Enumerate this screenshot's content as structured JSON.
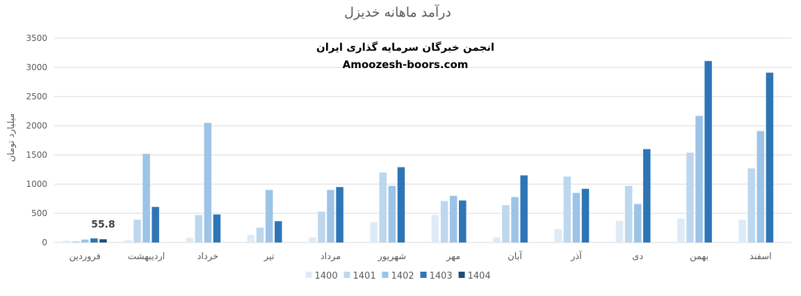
{
  "chart_data": {
    "type": "bar",
    "title": "درآمد ماهانه خدیزل",
    "ylabel": "میلیارد تومان",
    "xlabel": "",
    "ylim": [
      0,
      3500
    ],
    "yticks": [
      0,
      500,
      1000,
      1500,
      2000,
      2500,
      3000,
      3500
    ],
    "grid": true,
    "legend_position": "bottom",
    "categories": [
      "فروردین",
      "اردیبهشت",
      "خرداد",
      "تیر",
      "مرداد",
      "شهریور",
      "مهر",
      "آبان",
      "آذر",
      "دی",
      "بهمن",
      "اسفند"
    ],
    "series": [
      {
        "name": "1400",
        "color": "#deebf7",
        "values": [
          30,
          40,
          80,
          130,
          90,
          350,
          470,
          90,
          230,
          370,
          410,
          390
        ]
      },
      {
        "name": "1401",
        "color": "#bdd7ee",
        "values": [
          20,
          390,
          470,
          255,
          530,
          1200,
          710,
          640,
          1130,
          970,
          1540,
          1270
        ]
      },
      {
        "name": "1402",
        "color": "#9dc3e6",
        "values": [
          50,
          1520,
          2050,
          900,
          900,
          970,
          800,
          780,
          850,
          660,
          2170,
          1910
        ]
      },
      {
        "name": "1403",
        "color": "#2e75b6",
        "values": [
          70,
          610,
          480,
          365,
          950,
          1290,
          720,
          1150,
          920,
          1600,
          3110,
          2910
        ]
      },
      {
        "name": "1404",
        "color": "#1f4e79",
        "values": [
          55.8,
          null,
          null,
          null,
          null,
          null,
          null,
          null,
          null,
          null,
          null,
          null
        ]
      }
    ],
    "annotations": [
      {
        "text": "55.8",
        "series": "1404",
        "category": "فروردین"
      }
    ]
  },
  "watermark": {
    "line1": "انجمن خبرگان سرمایه گذاری ایران",
    "line2": "Amoozesh-boors.com"
  },
  "colors": {
    "grid": "#d9d9d9",
    "axis_text": "#595959",
    "title": "#595959"
  }
}
